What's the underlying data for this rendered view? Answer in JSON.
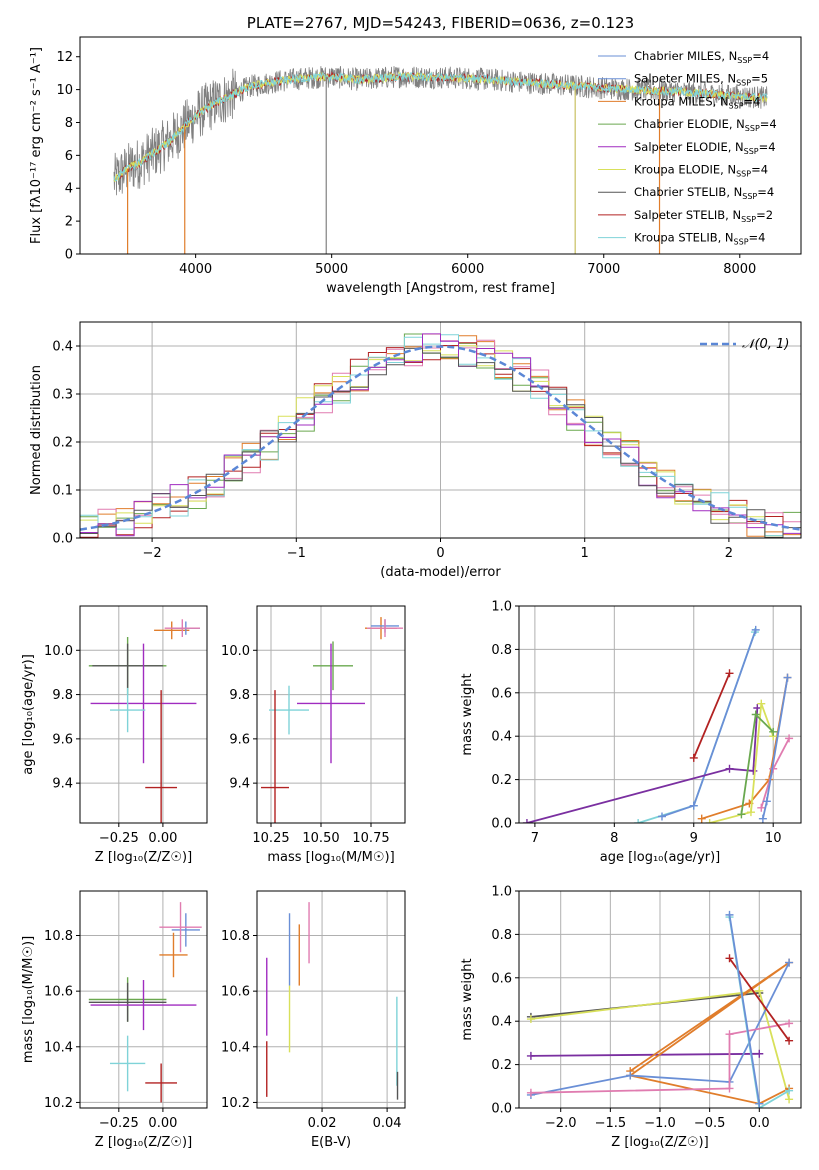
{
  "colors": {
    "chabrier_miles": "#6a8fd6",
    "salpeter_miles": "#6a8fd6",
    "kroupa_miles": "#e07d2b",
    "chabrier_elodie": "#6aa84f",
    "salpeter_elodie": "#a02cc0",
    "kroupa_elodie": "#d8e05a",
    "chabrier_stelib": "#555555",
    "salpeter_stelib": "#b22222",
    "kroupa_stelib": "#7fd3d8",
    "pink": "#e07cb0",
    "purple": "#7a2fa0",
    "green": "#6aa84f",
    "gauss": "#5b87d6"
  },
  "chart_data": [
    {
      "id": "spectrum",
      "type": "line",
      "title": "PLATE=2767, MJD=54243, FIBERID=0636, z=0.123",
      "xlabel": "wavelength [Angstrom, rest frame]",
      "ylabel": "Flux [fλ10⁻¹⁷ erg cm⁻² s⁻¹ A⁻¹]",
      "xlim": [
        3150,
        8450
      ],
      "ylim": [
        0,
        13.2
      ],
      "xticks": [
        4000,
        5000,
        6000,
        7000,
        8000
      ],
      "yticks": [
        0,
        2,
        4,
        6,
        8,
        10,
        12
      ],
      "legend_position": "top-right",
      "legend": [
        {
          "key": "chabrier_miles",
          "label": "Chabrier MILES, N",
          "sub": "SSP",
          "suffix": "=4"
        },
        {
          "key": "salpeter_miles",
          "label": "Salpeter MILES, N",
          "sub": "SSP",
          "suffix": "=5"
        },
        {
          "key": "kroupa_miles",
          "label": "Kroupa MILES, N",
          "sub": "SSP",
          "suffix": "=4"
        },
        {
          "key": "chabrier_elodie",
          "label": "Chabrier ELODIE, N",
          "sub": "SSP",
          "suffix": "=4"
        },
        {
          "key": "salpeter_elodie",
          "label": "Salpeter ELODIE, N",
          "sub": "SSP",
          "suffix": "=4"
        },
        {
          "key": "kroupa_elodie",
          "label": "Kroupa ELODIE, N",
          "sub": "SSP",
          "suffix": "=4"
        },
        {
          "key": "chabrier_stelib",
          "label": "Chabrier STELIB, N",
          "sub": "SSP",
          "suffix": "=4"
        },
        {
          "key": "salpeter_stelib",
          "label": "Salpeter STELIB, N",
          "sub": "SSP",
          "suffix": "=2"
        },
        {
          "key": "kroupa_stelib",
          "label": "Kroupa STELIB, N",
          "sub": "SSP",
          "suffix": "=4"
        }
      ],
      "continuum": {
        "x": [
          3400,
          3500,
          3600,
          3700,
          3800,
          3900,
          4000,
          4100,
          4200,
          4300,
          4400,
          4600,
          4800,
          5000,
          5200,
          5500,
          6000,
          6500,
          7000,
          7500,
          8000,
          8200
        ],
        "y": [
          4.5,
          5.2,
          5.6,
          6.2,
          6.8,
          7.6,
          8.4,
          9.0,
          9.4,
          9.8,
          10.2,
          10.5,
          10.7,
          10.8,
          10.6,
          10.8,
          10.7,
          10.4,
          10.1,
          9.9,
          9.6,
          9.5
        ]
      },
      "spikes_x": [
        3500,
        3920,
        4960,
        6790,
        7410
      ]
    },
    {
      "id": "residuals",
      "type": "histogram",
      "xlabel": "(data-model)/error",
      "ylabel": "Normed distribution",
      "xlim": [
        -2.5,
        2.5
      ],
      "ylim": [
        0,
        0.45
      ],
      "xticks": [
        -2,
        -1,
        0,
        1,
        2
      ],
      "yticks": [
        0.0,
        0.1,
        0.2,
        0.3,
        0.4
      ],
      "legend": [
        "𝒩(0, 1)"
      ],
      "legend_position": "top-right"
    },
    {
      "id": "age_vs_Z",
      "type": "errorbar",
      "xlabel": "Z [log₁₀(Z/Z☉)]",
      "ylabel": "age  [log₁₀(age/yr)]",
      "xlim": [
        -0.47,
        0.25
      ],
      "ylim": [
        9.22,
        10.2
      ],
      "xticks": [
        -0.25,
        0.0
      ],
      "yticks": [
        9.4,
        9.6,
        9.8,
        10.0
      ],
      "points": [
        {
          "c": "kroupa_miles",
          "x": 0.05,
          "y": 10.09,
          "xe": 0.1,
          "ye": 0.04
        },
        {
          "c": "chabrier_miles",
          "x": 0.13,
          "y": 10.1,
          "xe": 0.08,
          "ye": 0.03
        },
        {
          "c": "pink",
          "x": 0.11,
          "y": 10.1,
          "xe": 0.1,
          "ye": 0.04
        },
        {
          "c": "green",
          "x": -0.2,
          "y": 9.93,
          "xe": 0.22,
          "ye": 0.13
        },
        {
          "c": "chabrier_stelib",
          "x": -0.2,
          "y": 9.93,
          "xe": 0.2,
          "ye": 0.1
        },
        {
          "c": "salpeter_elodie",
          "x": -0.11,
          "y": 9.76,
          "xe": 0.3,
          "ye": 0.27
        },
        {
          "c": "kroupa_stelib",
          "x": -0.2,
          "y": 9.73,
          "xe": 0.1,
          "ye": 0.1
        },
        {
          "c": "salpeter_stelib",
          "x": -0.01,
          "y": 9.38,
          "xe": 0.09,
          "ye": 0.44
        }
      ]
    },
    {
      "id": "age_vs_mass",
      "type": "errorbar",
      "xlabel": "mass [log₁₀(M/M☉)]",
      "ylabel": "",
      "xlim": [
        10.18,
        10.92
      ],
      "ylim": [
        9.22,
        10.2
      ],
      "xticks": [
        10.25,
        10.5,
        10.75
      ],
      "yticks": [
        9.4,
        9.6,
        9.8,
        10.0
      ],
      "points": [
        {
          "c": "kroupa_miles",
          "x": 10.8,
          "y": 10.1,
          "xe": 0.08,
          "ye": 0.05
        },
        {
          "c": "chabrier_miles",
          "x": 10.82,
          "y": 10.11,
          "xe": 0.07,
          "ye": 0.03
        },
        {
          "c": "pink",
          "x": 10.82,
          "y": 10.1,
          "xe": 0.09,
          "ye": 0.04
        },
        {
          "c": "green",
          "x": 10.56,
          "y": 9.93,
          "xe": 0.1,
          "ye": 0.11
        },
        {
          "c": "salpeter_elodie",
          "x": 10.55,
          "y": 9.76,
          "xe": 0.17,
          "ye": 0.27
        },
        {
          "c": "kroupa_stelib",
          "x": 10.34,
          "y": 9.73,
          "xe": 0.1,
          "ye": 0.11
        },
        {
          "c": "salpeter_stelib",
          "x": 10.27,
          "y": 9.38,
          "xe": 0.07,
          "ye": 0.44
        }
      ]
    },
    {
      "id": "massweight_vs_age",
      "type": "line",
      "xlabel": "age  [log₁₀(age/yr)]",
      "ylabel": "mass weight",
      "xlim": [
        6.8,
        10.35
      ],
      "ylim": [
        0,
        1.0
      ],
      "xticks": [
        7,
        8,
        9,
        10
      ],
      "yticks": [
        0.0,
        0.2,
        0.4,
        0.6,
        0.8,
        1.0
      ],
      "series": [
        {
          "c": "kroupa_stelib",
          "x": [
            8.3,
            9.0,
            9.77
          ],
          "y": [
            0.0,
            0.08,
            0.88
          ]
        },
        {
          "c": "chabrier_miles",
          "x": [
            8.6,
            9.0,
            9.78
          ],
          "y": [
            0.03,
            0.08,
            0.89
          ]
        },
        {
          "c": "salpeter_stelib",
          "x": [
            9.0,
            9.45
          ],
          "y": [
            0.3,
            0.69
          ]
        },
        {
          "c": "purple",
          "x": [
            6.9,
            9.45,
            9.75,
            9.8
          ],
          "y": [
            0.0,
            0.25,
            0.24,
            0.53
          ]
        },
        {
          "c": "kroupa_miles",
          "x": [
            9.1,
            9.7,
            9.95,
            10.18
          ],
          "y": [
            0.02,
            0.09,
            0.2,
            0.67
          ]
        },
        {
          "c": "kroupa_elodie",
          "x": [
            9.2,
            9.72,
            9.85,
            10.0
          ],
          "y": [
            0.0,
            0.05,
            0.55,
            0.4
          ]
        },
        {
          "c": "green",
          "x": [
            9.6,
            9.78,
            10.0
          ],
          "y": [
            0.04,
            0.5,
            0.42
          ]
        },
        {
          "c": "pink",
          "x": [
            9.85,
            10.0,
            10.2
          ],
          "y": [
            0.07,
            0.25,
            0.39
          ]
        },
        {
          "c": "chabrier_miles",
          "x": [
            9.87,
            9.92,
            10.18
          ],
          "y": [
            0.02,
            0.1,
            0.67
          ]
        }
      ]
    },
    {
      "id": "mass_vs_Z",
      "type": "errorbar",
      "xlabel": "Z [log₁₀(Z/Z☉)]",
      "ylabel": "mass [log₁₀(M/M☉)]",
      "xlim": [
        -0.47,
        0.25
      ],
      "ylim": [
        10.18,
        10.96
      ],
      "xticks": [
        -0.25,
        0.0
      ],
      "yticks": [
        10.2,
        10.4,
        10.6,
        10.8
      ],
      "points": [
        {
          "c": "chabrier_miles",
          "x": 0.13,
          "y": 10.82,
          "xe": 0.08,
          "ye": 0.06
        },
        {
          "c": "pink",
          "x": 0.1,
          "y": 10.83,
          "xe": 0.12,
          "ye": 0.09
        },
        {
          "c": "kroupa_miles",
          "x": 0.06,
          "y": 10.73,
          "xe": 0.08,
          "ye": 0.08
        },
        {
          "c": "green",
          "x": -0.2,
          "y": 10.57,
          "xe": 0.22,
          "ye": 0.08
        },
        {
          "c": "chabrier_stelib",
          "x": -0.2,
          "y": 10.56,
          "xe": 0.22,
          "ye": 0.07
        },
        {
          "c": "salpeter_elodie",
          "x": -0.11,
          "y": 10.55,
          "xe": 0.3,
          "ye": 0.09
        },
        {
          "c": "kroupa_stelib",
          "x": -0.2,
          "y": 10.34,
          "xe": 0.1,
          "ye": 0.1
        },
        {
          "c": "salpeter_stelib",
          "x": -0.01,
          "y": 10.27,
          "xe": 0.09,
          "ye": 0.07
        }
      ]
    },
    {
      "id": "mass_vs_ebv",
      "type": "errorbar",
      "xlabel": "E(B-V)",
      "ylabel": "",
      "xlim": [
        0.0,
        0.0455
      ],
      "ylim": [
        10.18,
        10.96
      ],
      "xticks": [
        0.02,
        0.04
      ],
      "yticks": [
        10.2,
        10.4,
        10.6,
        10.8
      ],
      "points": [
        {
          "c": "chabrier_miles",
          "x": 0.01,
          "y": 10.75,
          "xe": 0,
          "ye": 0.13
        },
        {
          "c": "kroupa_miles",
          "x": 0.013,
          "y": 10.73,
          "xe": 0,
          "ye": 0.11
        },
        {
          "c": "pink",
          "x": 0.016,
          "y": 10.81,
          "xe": 0,
          "ye": 0.11
        },
        {
          "c": "kroupa_elodie",
          "x": 0.01,
          "y": 10.5,
          "xe": 0,
          "ye": 0.12
        },
        {
          "c": "salpeter_elodie",
          "x": 0.003,
          "y": 10.58,
          "xe": 0,
          "ye": 0.14
        },
        {
          "c": "salpeter_stelib",
          "x": 0.003,
          "y": 10.32,
          "xe": 0,
          "ye": 0.1
        },
        {
          "c": "kroupa_stelib",
          "x": 0.043,
          "y": 10.42,
          "xe": 0,
          "ye": 0.16
        },
        {
          "c": "chabrier_stelib",
          "x": 0.0432,
          "y": 10.26,
          "xe": 0,
          "ye": 0.05
        }
      ]
    },
    {
      "id": "massweight_vs_Z",
      "type": "line",
      "xlabel": "Z [log₁₀(Z/Z☉)]",
      "ylabel": "mass weight",
      "xlim": [
        -2.42,
        0.42
      ],
      "ylim": [
        0,
        1.0
      ],
      "xticks": [
        -2.0,
        -1.5,
        -1.0,
        -0.5,
        0.0
      ],
      "yticks": [
        0.0,
        0.2,
        0.4,
        0.6,
        0.8,
        1.0
      ],
      "series": [
        {
          "c": "chabrier_stelib",
          "x": [
            -2.3,
            0.0
          ],
          "y": [
            0.42,
            0.53
          ]
        },
        {
          "c": "kroupa_elodie",
          "x": [
            -2.3,
            0.0,
            0.3
          ],
          "y": [
            0.41,
            0.54,
            0.04
          ]
        },
        {
          "c": "purple",
          "x": [
            -2.3,
            0.0
          ],
          "y": [
            0.24,
            0.25
          ]
        },
        {
          "c": "kroupa_miles",
          "x": [
            -1.3,
            0.3,
            -1.3,
            0.0,
            0.3
          ],
          "y": [
            0.17,
            0.67,
            0.15,
            0.02,
            0.09
          ]
        },
        {
          "c": "chabrier_miles",
          "x": [
            -2.3,
            -1.3,
            -0.3,
            0.3
          ],
          "y": [
            0.06,
            0.15,
            0.12,
            0.67
          ]
        },
        {
          "c": "pink",
          "x": [
            -2.3,
            -0.3,
            -0.3,
            0.3
          ],
          "y": [
            0.07,
            0.09,
            0.34,
            0.39
          ]
        },
        {
          "c": "salpeter_stelib",
          "x": [
            -0.3,
            0.3
          ],
          "y": [
            0.69,
            0.31
          ]
        },
        {
          "c": "kroupa_stelib",
          "x": [
            -0.3,
            0.0,
            0.3
          ],
          "y": [
            0.88,
            0.0,
            0.08
          ]
        },
        {
          "c": "chabrier_miles",
          "x": [
            -0.3,
            0.0
          ],
          "y": [
            0.89,
            0.02
          ]
        }
      ]
    }
  ]
}
